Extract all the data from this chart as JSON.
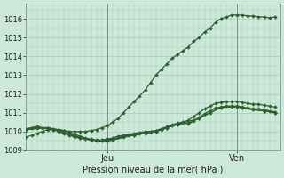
{
  "title": "Pression niveau de la mer( hPa )",
  "xlabel_jeu": "Jeu",
  "xlabel_ven": "Ven",
  "bg_color": "#cce8d8",
  "grid_color": "#aaccbb",
  "line_color": "#2d6030",
  "ylim": [
    1009.0,
    1016.8
  ],
  "xlim": [
    0,
    47
  ],
  "x_jeu": 15,
  "x_ven": 39,
  "series": [
    {
      "x": [
        0,
        1,
        2,
        3,
        4,
        5,
        6,
        7,
        8,
        9,
        10,
        11,
        12,
        13,
        14,
        15,
        16,
        17,
        18,
        19,
        20,
        21,
        22,
        23,
        24,
        25,
        26,
        27,
        28,
        29,
        30,
        31,
        32,
        33,
        34,
        35,
        36,
        37,
        38,
        39,
        40,
        41,
        42,
        43,
        44,
        45,
        46
      ],
      "y": [
        1009.7,
        1009.8,
        1009.9,
        1010.0,
        1010.1,
        1010.1,
        1010.1,
        1010.05,
        1010.0,
        1010.0,
        1010.0,
        1010.0,
        1010.05,
        1010.1,
        1010.2,
        1010.3,
        1010.5,
        1010.7,
        1011.0,
        1011.3,
        1011.6,
        1011.9,
        1012.2,
        1012.6,
        1013.0,
        1013.3,
        1013.6,
        1013.9,
        1014.1,
        1014.3,
        1014.5,
        1014.8,
        1015.0,
        1015.3,
        1015.5,
        1015.8,
        1016.0,
        1016.1,
        1016.2,
        1016.2,
        1016.2,
        1016.15,
        1016.15,
        1016.1,
        1016.1,
        1016.05,
        1016.1
      ]
    },
    {
      "x": [
        0,
        1,
        2,
        3,
        4,
        5,
        6,
        7,
        8,
        9,
        10,
        11,
        12,
        13,
        14,
        15,
        16,
        17,
        18,
        19,
        20,
        21,
        22,
        23,
        24,
        25,
        26,
        27,
        28,
        29,
        30,
        31,
        32,
        33,
        34,
        35,
        36,
        37,
        38,
        39,
        40,
        41,
        42,
        43,
        44,
        45,
        46
      ],
      "y": [
        1010.15,
        1010.2,
        1010.25,
        1010.2,
        1010.2,
        1010.15,
        1010.1,
        1010.05,
        1009.95,
        1009.85,
        1009.75,
        1009.65,
        1009.6,
        1009.55,
        1009.55,
        1009.6,
        1009.65,
        1009.75,
        1009.8,
        1009.85,
        1009.9,
        1009.95,
        1010.0,
        1010.0,
        1010.05,
        1010.1,
        1010.2,
        1010.3,
        1010.4,
        1010.5,
        1010.6,
        1010.8,
        1011.0,
        1011.2,
        1011.35,
        1011.5,
        1011.55,
        1011.6,
        1011.6,
        1011.6,
        1011.55,
        1011.5,
        1011.45,
        1011.45,
        1011.4,
        1011.35,
        1011.3
      ]
    },
    {
      "x": [
        0,
        1,
        2,
        3,
        4,
        5,
        6,
        7,
        8,
        9,
        10,
        11,
        12,
        13,
        14,
        15,
        16,
        17,
        18,
        19,
        20,
        21,
        22,
        23,
        24,
        25,
        26,
        27,
        28,
        29,
        30,
        31,
        32,
        33,
        34,
        35,
        36,
        37,
        38,
        39,
        40,
        41,
        42,
        43,
        44,
        45,
        46
      ],
      "y": [
        1010.1,
        1010.2,
        1010.25,
        1010.2,
        1010.15,
        1010.1,
        1010.0,
        1009.9,
        1009.8,
        1009.7,
        1009.65,
        1009.6,
        1009.55,
        1009.52,
        1009.5,
        1009.55,
        1009.6,
        1009.7,
        1009.75,
        1009.8,
        1009.85,
        1009.9,
        1009.95,
        1010.0,
        1010.05,
        1010.15,
        1010.25,
        1010.35,
        1010.45,
        1010.5,
        1010.4,
        1010.55,
        1010.75,
        1010.95,
        1011.1,
        1011.25,
        1011.3,
        1011.35,
        1011.35,
        1011.35,
        1011.3,
        1011.25,
        1011.2,
        1011.2,
        1011.15,
        1011.1,
        1011.05
      ]
    },
    {
      "x": [
        0,
        2,
        4,
        6,
        8,
        10,
        12,
        14,
        15,
        16,
        18,
        20,
        22,
        24,
        26,
        28,
        30,
        32,
        34,
        36,
        38,
        39,
        40,
        42,
        44,
        46
      ],
      "y": [
        1010.1,
        1010.2,
        1010.2,
        1010.05,
        1009.85,
        1009.65,
        1009.55,
        1009.5,
        1009.52,
        1009.55,
        1009.7,
        1009.82,
        1009.9,
        1010.0,
        1010.2,
        1010.38,
        1010.45,
        1010.7,
        1011.0,
        1011.28,
        1011.32,
        1011.32,
        1011.25,
        1011.15,
        1011.1,
        1011.0
      ]
    },
    {
      "x": [
        0,
        4,
        8,
        12,
        15,
        16,
        20,
        24,
        28,
        32,
        36,
        39,
        40,
        44,
        46
      ],
      "y": [
        1010.1,
        1010.2,
        1009.85,
        1009.55,
        1009.5,
        1009.55,
        1009.82,
        1010.0,
        1010.38,
        1010.7,
        1011.28,
        1011.32,
        1011.25,
        1011.1,
        1011.0
      ]
    }
  ]
}
